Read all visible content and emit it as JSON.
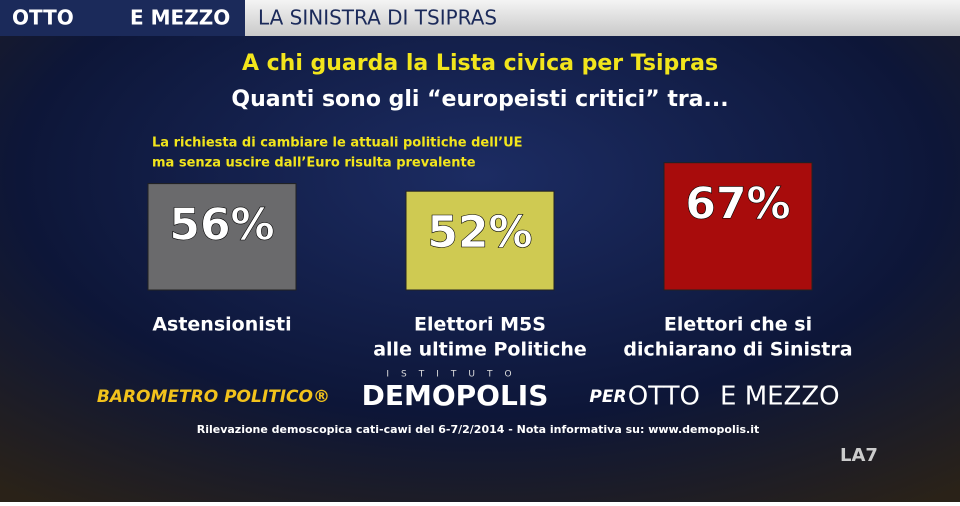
{
  "header": {
    "logo_left": "OTTO",
    "logo_right": "E MEZZO",
    "section": "LA SINISTRA DI TSIPRAS"
  },
  "chart_data": {
    "type": "bar",
    "title": "A chi guarda la Lista civica per Tsipras",
    "subtitle": "Quanti sono gli “europeisti critici” tra...",
    "annotation": [
      "La richiesta di cambiare le attuali politiche dell’UE",
      "ma senza uscire dall’Euro risulta prevalente"
    ],
    "categories": [
      [
        "Astensionisti"
      ],
      [
        "Elettori M5S",
        "alle ultime Politiche"
      ],
      [
        "Elettori che si",
        "dichiarano di Sinistra"
      ]
    ],
    "values": [
      56,
      52,
      67
    ],
    "value_labels": [
      "56%",
      "52%",
      "67%"
    ],
    "colors": [
      "#6a6a6c",
      "#cfca52",
      "#a80c0c"
    ]
  },
  "footer": {
    "barometro": "BAROMETRO POLITICO®",
    "istituto": "ISTITUTO",
    "demopolis": "DEMOPOLIS",
    "per": "PER",
    "otto": "OTTO",
    "emezzo": "E MEZZO",
    "source": "Rilevazione demoscopica cati-cawi del 6-7/2/2014 - Nota informativa su: www.demopolis.it",
    "channel": "LA7"
  }
}
